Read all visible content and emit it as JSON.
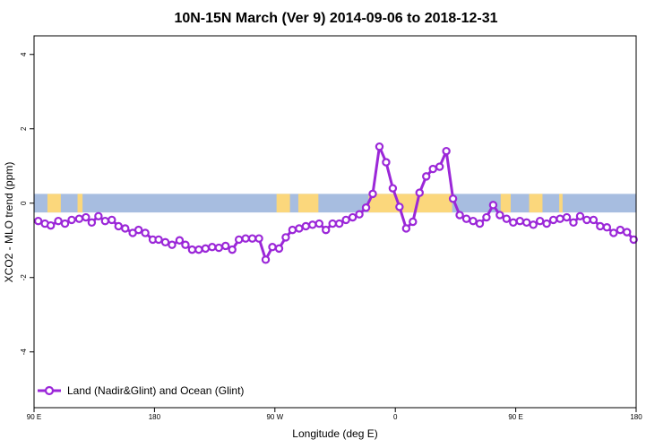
{
  "chart_data": {
    "type": "line",
    "title": "10N-15N March (Ver 9)   2014-09-06 to 2018-12-31",
    "xlabel": "Longitude (deg E)",
    "ylabel": "XCO2 - MLO trend (ppm)",
    "xlim": [
      0,
      360
    ],
    "ylim": [
      -5.5,
      4.5
    ],
    "x_ticks": [
      {
        "value": 0,
        "label": "90 E"
      },
      {
        "value": 72,
        "label": "180"
      },
      {
        "value": 144,
        "label": "90 W"
      },
      {
        "value": 216,
        "label": "0"
      },
      {
        "value": 288,
        "label": "90 E"
      },
      {
        "value": 360,
        "label": "180"
      }
    ],
    "y_ticks": [
      {
        "value": 4,
        "label": "4"
      },
      {
        "value": 2,
        "label": "2"
      },
      {
        "value": 0,
        "label": "0"
      },
      {
        "value": -2,
        "label": "-2"
      },
      {
        "value": -4,
        "label": "-4"
      }
    ],
    "band": {
      "y_range": [
        -0.25,
        0.25
      ],
      "ocean_color": "#a7bde0",
      "land_color": "#fbd77c",
      "land_segments": [
        [
          8,
          16
        ],
        [
          26,
          29
        ],
        [
          145,
          153
        ],
        [
          158,
          170
        ],
        [
          200,
          250
        ],
        [
          279,
          285
        ],
        [
          296,
          304
        ],
        [
          314,
          316
        ]
      ]
    },
    "legend_position": "bottom-left",
    "series": [
      {
        "name": "Land (Nadir&Glint) and Ocean (Glint)",
        "color": "#9b27d8",
        "x": [
          2.5,
          6.5,
          10,
          14.5,
          18.5,
          22.5,
          27,
          31,
          34.5,
          38.5,
          42.5,
          46.5,
          50.5,
          54.5,
          59,
          62.5,
          66.5,
          71,
          74.5,
          78.5,
          82.5,
          87,
          90.5,
          94.5,
          98.5,
          102.5,
          106.5,
          110.5,
          114.5,
          118.5,
          122.5,
          126.5,
          130.5,
          134.5,
          138.5,
          142.5,
          146.5,
          150.5,
          154.5,
          158.5,
          162.5,
          166.5,
          170.5,
          174.5,
          178.5,
          182.5,
          186.5,
          190.5,
          194.5,
          198.5,
          202.5,
          206.5,
          210.5,
          214.5,
          218.5,
          222.5,
          226.5,
          230.5,
          234.5,
          238.5,
          242.5,
          246.5,
          250.5,
          254.5,
          258.5,
          262.5,
          266.5,
          270.5,
          274.5,
          278.5,
          282.5,
          286.5,
          290.5,
          294.5,
          298.5,
          302.5,
          306.5,
          310.5,
          314.5,
          318.5,
          322.5,
          326.5,
          330.5,
          334.5,
          338.5,
          342.5,
          346.5,
          350.5,
          354.5,
          358.5
        ],
        "y": [
          -0.48,
          -0.55,
          -0.6,
          -0.48,
          -0.55,
          -0.45,
          -0.42,
          -0.38,
          -0.52,
          -0.35,
          -0.48,
          -0.45,
          -0.62,
          -0.68,
          -0.8,
          -0.72,
          -0.8,
          -0.98,
          -0.98,
          -1.05,
          -1.12,
          -1.0,
          -1.12,
          -1.25,
          -1.25,
          -1.22,
          -1.18,
          -1.2,
          -1.15,
          -1.25,
          -0.98,
          -0.95,
          -0.95,
          -0.95,
          -1.52,
          -1.18,
          -1.22,
          -0.92,
          -0.72,
          -0.68,
          -0.62,
          -0.58,
          -0.55,
          -0.72,
          -0.55,
          -0.55,
          -0.45,
          -0.38,
          -0.3,
          -0.12,
          0.25,
          1.52,
          1.1,
          0.4,
          -0.1,
          -0.68,
          -0.5,
          0.28,
          0.72,
          0.92,
          0.98,
          1.4,
          0.12,
          -0.32,
          -0.42,
          -0.48,
          -0.55,
          -0.38,
          -0.05,
          -0.32,
          -0.42,
          -0.52,
          -0.48,
          -0.52,
          -0.58,
          -0.48,
          -0.55,
          -0.45,
          -0.42,
          -0.38,
          -0.52,
          -0.35,
          -0.45,
          -0.45,
          -0.62,
          -0.65,
          -0.8,
          -0.72,
          -0.78,
          -0.98
        ]
      }
    ]
  }
}
